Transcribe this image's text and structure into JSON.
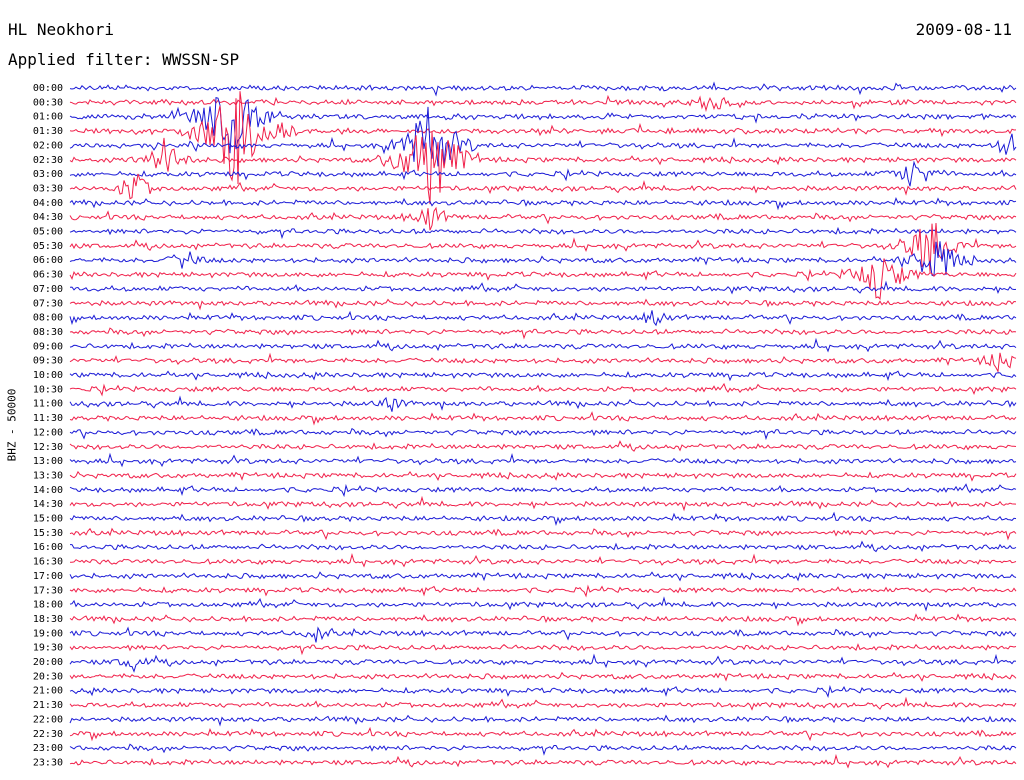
{
  "header": {
    "station": "HL Neokhori",
    "filter_label": "Applied filter: WWSSN-SP",
    "date": "2009-08-11"
  },
  "chart_data": {
    "type": "line",
    "title": "HL Neokhori",
    "subtitle": "Applied filter: WWSSN-SP",
    "date": "2009-08-11",
    "ylabel": "BHZ - 50000",
    "rows": [
      "00:00",
      "00:30",
      "01:00",
      "01:30",
      "02:00",
      "02:30",
      "03:00",
      "03:30",
      "04:00",
      "04:30",
      "05:00",
      "05:30",
      "06:00",
      "06:30",
      "07:00",
      "07:30",
      "08:00",
      "08:30",
      "09:00",
      "09:30",
      "10:00",
      "10:30",
      "11:00",
      "11:30",
      "12:00",
      "12:30",
      "13:00",
      "13:30",
      "14:00",
      "14:30",
      "15:00",
      "15:30",
      "16:00",
      "16:30",
      "17:00",
      "17:30",
      "18:00",
      "18:30",
      "19:00",
      "19:30",
      "20:00",
      "20:30",
      "21:00",
      "21:30",
      "22:00",
      "22:30",
      "23:00",
      "23:30"
    ],
    "colors": [
      "#1a1ad6",
      "#f0204a"
    ],
    "grid": false,
    "legend": "none"
  }
}
